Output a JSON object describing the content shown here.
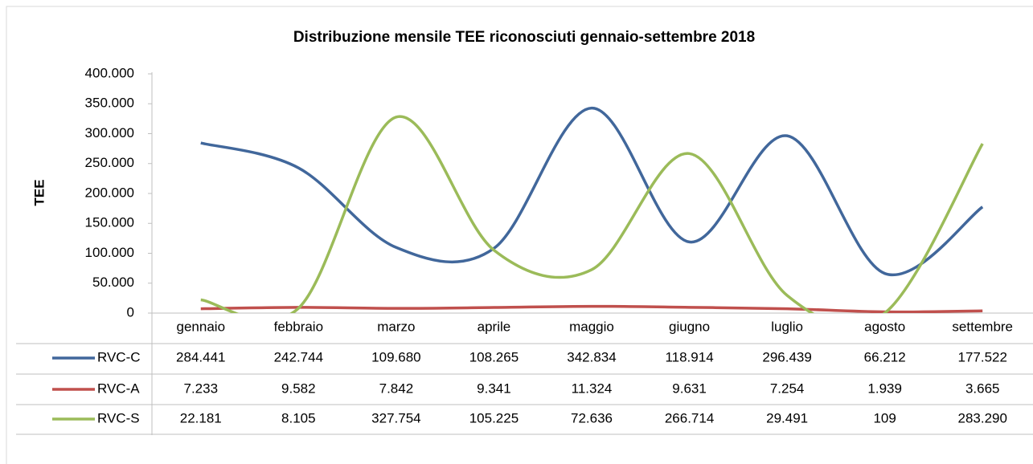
{
  "chart_data": {
    "type": "line",
    "title": "Distribuzione mensile TEE riconosciuti gennaio-settembre 2018",
    "y_label": "TEE",
    "categories": [
      "gennaio",
      "febbraio",
      "marzo",
      "aprile",
      "maggio",
      "giugno",
      "luglio",
      "agosto",
      "settembre"
    ],
    "series": [
      {
        "name": "RVC-C",
        "color": "#41679b",
        "values": [
          284441,
          242744,
          109680,
          108265,
          342834,
          118914,
          296439,
          66212,
          177522
        ],
        "value_labels": [
          "284.441",
          "242.744",
          "109.680",
          "108.265",
          "342.834",
          "118.914",
          "296.439",
          "66.212",
          "177.522"
        ]
      },
      {
        "name": "RVC-A",
        "color": "#c0504d",
        "values": [
          7233,
          9582,
          7842,
          9341,
          11324,
          9631,
          7254,
          1939,
          3665
        ],
        "value_labels": [
          "7.233",
          "9.582",
          "7.842",
          "9.341",
          "11.324",
          "9.631",
          "7.254",
          "1.939",
          "3.665"
        ]
      },
      {
        "name": "RVC-S",
        "color": "#9bbb59",
        "values": [
          22181,
          8105,
          327754,
          105225,
          72636,
          266714,
          29491,
          109,
          283290
        ],
        "value_labels": [
          "22.181",
          "8.105",
          "327.754",
          "105.225",
          "72.636",
          "266.714",
          "29.491",
          "109",
          "283.290"
        ]
      }
    ],
    "ylim": [
      0,
      400000
    ],
    "yticks": [
      0,
      {
        "value": 50000,
        "label": "50.000"
      },
      {
        "value": 100000,
        "label": "100.000"
      },
      {
        "value": 150000,
        "label": "150.000"
      },
      {
        "value": 200000,
        "label": "200.000"
      },
      {
        "value": 250000,
        "label": "250.000"
      },
      {
        "value": 300000,
        "label": "300.000"
      },
      {
        "value": 350000,
        "label": "350.000"
      },
      {
        "value": 400000,
        "label": "400.000"
      }
    ],
    "smooth": true,
    "data_table": true
  }
}
